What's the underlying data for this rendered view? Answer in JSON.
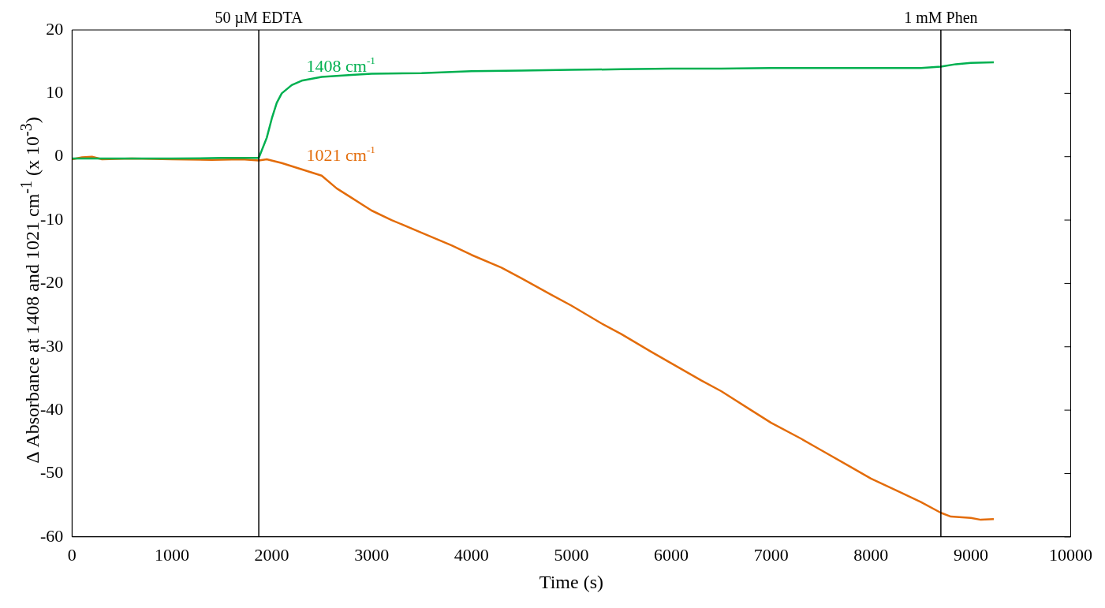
{
  "chart_data": {
    "type": "line",
    "xlabel": "Time (s)",
    "ylabel": "Δ Absorbance at 1408 and 1021 cm$^{-1}$ (x 10$^{-3}$)",
    "xlim": [
      0,
      10000
    ],
    "xticks": [
      0,
      1000,
      2000,
      3000,
      4000,
      5000,
      6000,
      7000,
      8000,
      9000,
      10000
    ],
    "ylim": [
      -60,
      20
    ],
    "yticks": [
      -60,
      -50,
      -40,
      -30,
      -20,
      -10,
      0,
      10,
      20
    ],
    "grid": false,
    "legend": false,
    "marker": "none",
    "line_style": "solid",
    "series": [
      {
        "name": "1408 cm$^{-1}$",
        "color": "#00b050",
        "x": [
          0,
          500,
          1000,
          1500,
          1870,
          1950,
          2000,
          2050,
          2100,
          2200,
          2300,
          2500,
          2800,
          3000,
          3500,
          4000,
          4500,
          5000,
          5500,
          6000,
          6500,
          7000,
          7500,
          8000,
          8500,
          8700,
          8850,
          9000,
          9230
        ],
        "values": [
          -0.3,
          -0.3,
          -0.3,
          -0.2,
          -0.2,
          3,
          6,
          8.5,
          10,
          11.3,
          12,
          12.6,
          12.9,
          13.1,
          13.2,
          13.5,
          13.6,
          13.7,
          13.8,
          13.9,
          13.9,
          14,
          14,
          14,
          14,
          14.2,
          14.6,
          14.8,
          14.9
        ]
      },
      {
        "name": "1021 cm$^{-1}$",
        "color": "#e36c0a",
        "x": [
          0,
          100,
          200,
          300,
          600,
          1000,
          1400,
          1700,
          1870,
          1950,
          2100,
          2300,
          2500,
          2650,
          2800,
          3000,
          3200,
          3500,
          3800,
          4000,
          4300,
          4500,
          4800,
          5000,
          5300,
          5500,
          5800,
          6000,
          6300,
          6500,
          6800,
          7000,
          7300,
          7500,
          7800,
          8000,
          8300,
          8500,
          8700,
          8800,
          9000,
          9100,
          9230
        ],
        "values": [
          -0.4,
          -0.1,
          0,
          -0.4,
          -0.3,
          -0.4,
          -0.5,
          -0.4,
          -0.6,
          -0.4,
          -1,
          -2,
          -3,
          -5,
          -6.5,
          -8.5,
          -10,
          -12,
          -14,
          -15.5,
          -17.5,
          -19.2,
          -21.8,
          -23.5,
          -26.3,
          -28,
          -30.8,
          -32.6,
          -35.3,
          -37,
          -40,
          -42,
          -44.5,
          -46.3,
          -49,
          -50.8,
          -53,
          -54.5,
          -56.2,
          -56.8,
          -57,
          -57.3,
          -57.2
        ]
      }
    ],
    "ref_lines": [
      {
        "axis": "x",
        "value": 1870,
        "label": "50 µM EDTA",
        "color": "#000000"
      },
      {
        "axis": "x",
        "value": 8700,
        "label": "1 mM Phen",
        "color": "#000000"
      }
    ]
  }
}
